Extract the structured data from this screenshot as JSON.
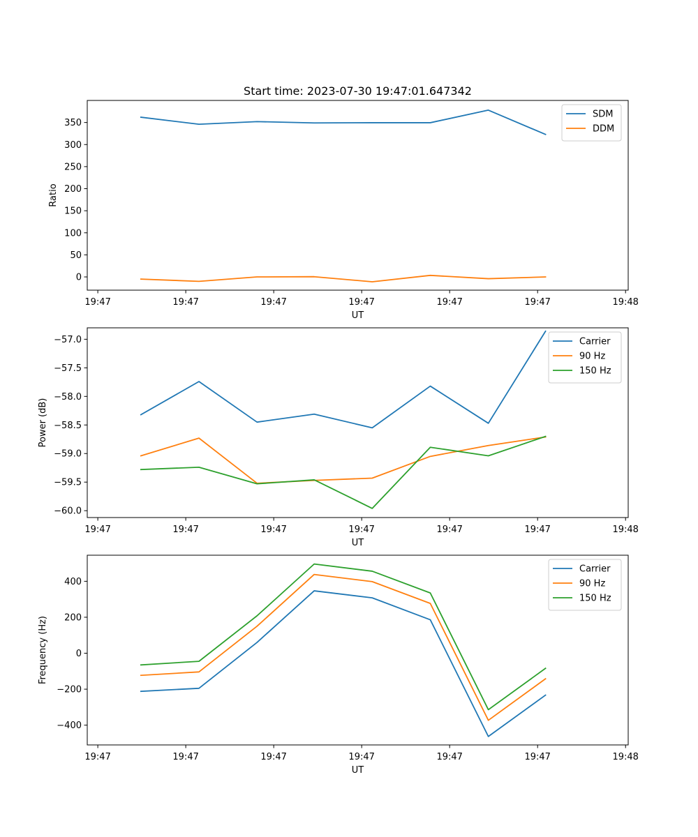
{
  "chart_data": [
    {
      "type": "line",
      "title": "Start time: 2023-07-30 19:47:01.647342",
      "xlabel": "UT",
      "ylabel": "Ratio",
      "x_tick_labels": [
        "19:47",
        "19:47",
        "19:47",
        "19:47",
        "19:47",
        "19:47",
        "19:48"
      ],
      "x_tick_values": [
        0,
        1,
        2,
        3,
        4,
        5,
        6
      ],
      "xlim": [
        -0.12,
        6.03
      ],
      "ylim": [
        -30,
        400
      ],
      "y_ticks": [
        0,
        50,
        100,
        150,
        200,
        250,
        300,
        350
      ],
      "x": [
        0.49,
        1.15,
        1.81,
        2.46,
        3.12,
        3.78,
        4.44,
        5.09
      ],
      "series": [
        {
          "name": "SDM",
          "color": "#1f77b4",
          "values": [
            362,
            346,
            352,
            349,
            349.5,
            349.5,
            378,
            323
          ]
        },
        {
          "name": "DDM",
          "color": "#ff7f0e",
          "values": [
            -5,
            -10,
            0,
            0.5,
            -11,
            3.5,
            -4,
            0
          ]
        }
      ],
      "legend": "top-right"
    },
    {
      "type": "line",
      "title": "",
      "xlabel": "UT",
      "ylabel": "Power (dB)",
      "x_tick_labels": [
        "19:47",
        "19:47",
        "19:47",
        "19:47",
        "19:47",
        "19:47",
        "19:48"
      ],
      "x_tick_values": [
        0,
        1,
        2,
        3,
        4,
        5,
        6
      ],
      "xlim": [
        -0.12,
        6.03
      ],
      "ylim": [
        -60.12,
        -56.8
      ],
      "y_ticks": [
        -60.0,
        -59.5,
        -59.0,
        -58.5,
        -58.0,
        -57.5,
        -57.0
      ],
      "y_tick_labels": [
        "−60.0",
        "−59.5",
        "−59.0",
        "−58.5",
        "−58.0",
        "−57.5",
        "−57.0"
      ],
      "x": [
        0.49,
        1.15,
        1.81,
        2.46,
        3.12,
        3.78,
        4.44,
        5.09
      ],
      "series": [
        {
          "name": "Carrier",
          "color": "#1f77b4",
          "values": [
            -58.32,
            -57.74,
            -58.45,
            -58.31,
            -58.55,
            -57.82,
            -58.47,
            -56.86
          ]
        },
        {
          "name": "90 Hz",
          "color": "#ff7f0e",
          "values": [
            -59.04,
            -58.73,
            -59.52,
            -59.47,
            -59.43,
            -59.05,
            -58.86,
            -58.71
          ]
        },
        {
          "name": "150 Hz",
          "color": "#2ca02c",
          "values": [
            -59.28,
            -59.24,
            -59.53,
            -59.46,
            -59.96,
            -58.89,
            -59.04,
            -58.7
          ]
        }
      ],
      "legend": "top-right"
    },
    {
      "type": "line",
      "title": "",
      "xlabel": "UT",
      "ylabel": "Frequency (Hz)",
      "x_tick_labels": [
        "19:47",
        "19:47",
        "19:47",
        "19:47",
        "19:47",
        "19:47",
        "19:48"
      ],
      "x_tick_values": [
        0,
        1,
        2,
        3,
        4,
        5,
        6
      ],
      "xlim": [
        -0.12,
        6.03
      ],
      "ylim": [
        -510,
        545
      ],
      "y_ticks": [
        -400,
        -200,
        0,
        200,
        400
      ],
      "y_tick_labels": [
        "−400",
        "−200",
        "0",
        "200",
        "400"
      ],
      "x": [
        0.49,
        1.15,
        1.81,
        2.46,
        3.12,
        3.78,
        4.44,
        5.09
      ],
      "series": [
        {
          "name": "Carrier",
          "color": "#1f77b4",
          "values": [
            -212,
            -195,
            60,
            347,
            308,
            186,
            -463,
            -233
          ]
        },
        {
          "name": "90 Hz",
          "color": "#ff7f0e",
          "values": [
            -123,
            -104,
            150,
            438,
            398,
            277,
            -373,
            -142
          ]
        },
        {
          "name": "150 Hz",
          "color": "#2ca02c",
          "values": [
            -65,
            -45,
            208,
            496,
            456,
            335,
            -314,
            -84
          ]
        }
      ],
      "legend": "top-right"
    }
  ]
}
